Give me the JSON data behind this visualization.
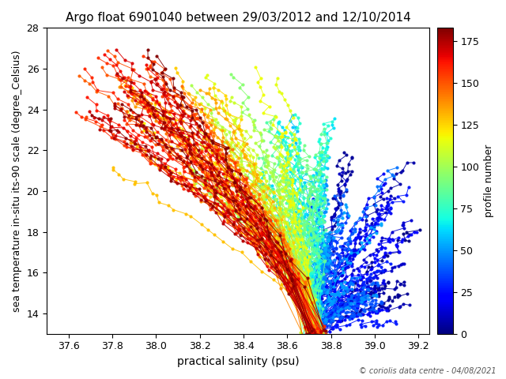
{
  "title": "Argo float 6901040 between 29/03/2012 and 12/10/2014",
  "xlabel": "practical salinity (psu)",
  "ylabel": "sea temperature in-situ its-90 scale (degree_Celsius)",
  "colorbar_label": "profile number",
  "copyright": "© coriolis data centre - 04/08/2021",
  "xlim": [
    37.5,
    39.25
  ],
  "ylim": [
    13.0,
    28.0
  ],
  "xticks": [
    37.6,
    37.8,
    38.0,
    38.2,
    38.4,
    38.6,
    38.8,
    39.0,
    39.2
  ],
  "yticks": [
    14,
    16,
    18,
    20,
    22,
    24,
    26,
    28
  ],
  "cmap": "jet",
  "vmin": 0,
  "vmax": 183,
  "n_profiles": 183,
  "n_levels": 25,
  "seed": 7
}
